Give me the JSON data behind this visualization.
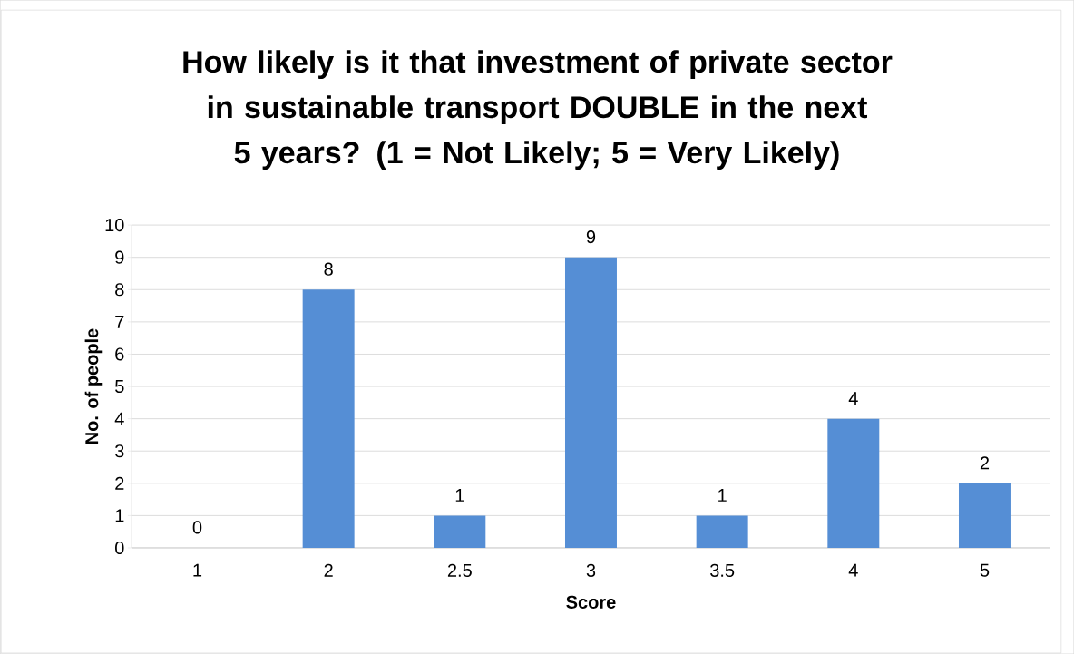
{
  "chart_data": {
    "type": "bar",
    "title": "How likely is it that investment of private sector in sustainable transport DOUBLE in the next 5 years? (1 = Not Likely; 5 = Very Likely)",
    "xlabel": "Score",
    "ylabel": "No. of people",
    "categories": [
      "1",
      "2",
      "2.5",
      "3",
      "3.5",
      "4",
      "5"
    ],
    "values": [
      0,
      8,
      1,
      9,
      1,
      4,
      2
    ],
    "color": "#558ed5",
    "ylim": [
      0,
      10
    ],
    "yticks": [
      0,
      1,
      2,
      3,
      4,
      5,
      6,
      7,
      8,
      9,
      10
    ],
    "grid": "y",
    "data_labels": true
  }
}
